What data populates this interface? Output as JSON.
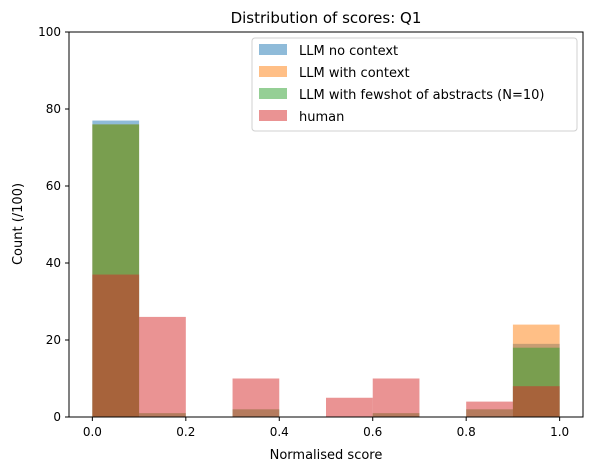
{
  "chart_data": {
    "type": "bar",
    "title": "Distribution of scores: Q1",
    "xlabel": "Normalised score",
    "ylabel": "Count (/100)",
    "xlim": [
      -0.05,
      1.05
    ],
    "ylim": [
      0,
      100
    ],
    "xticks": [
      "0.0",
      "0.2",
      "0.4",
      "0.6",
      "0.8",
      "1.0"
    ],
    "yticks": [
      "0",
      "20",
      "40",
      "60",
      "80",
      "100"
    ],
    "bin_edges": [
      0.0,
      0.1,
      0.2,
      0.3,
      0.4,
      0.5,
      0.6,
      0.7,
      0.8,
      0.9,
      1.0
    ],
    "legend_position": "top-right",
    "series": [
      {
        "name": "LLM no context",
        "color": "#1f77b4",
        "values": [
          77,
          0,
          0,
          0,
          0,
          0,
          0,
          0,
          0,
          19
        ]
      },
      {
        "name": "LLM with context",
        "color": "#ff7f0e",
        "values": [
          76,
          0,
          0,
          0,
          0,
          0,
          0,
          0,
          0,
          24
        ]
      },
      {
        "name": "LLM with fewshot of abstracts (N=10)",
        "color": "#2ca02c",
        "values": [
          76,
          1,
          0,
          2,
          0,
          0,
          1,
          0,
          2,
          18
        ]
      },
      {
        "name": "human",
        "color": "#d62728",
        "values": [
          37,
          26,
          0,
          10,
          0,
          5,
          10,
          0,
          4,
          8
        ]
      }
    ]
  }
}
